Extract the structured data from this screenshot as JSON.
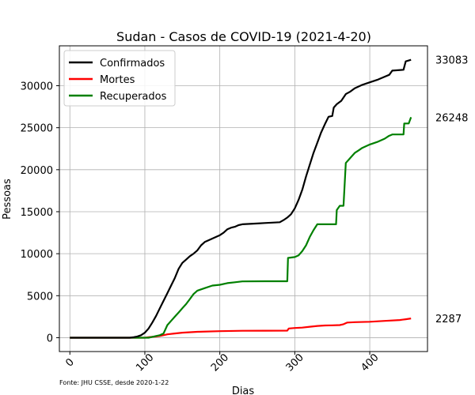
{
  "chart_data": {
    "type": "line",
    "title": "Sudan - Casos de COVID-19 (2021-4-20)",
    "xlabel": "Dias",
    "ylabel": "Pessoas",
    "xlim": [
      -14,
      477
    ],
    "ylim": [
      -1650,
      34750
    ],
    "xticks": [
      0,
      100,
      200,
      300,
      400
    ],
    "yticks": [
      0,
      5000,
      10000,
      15000,
      20000,
      25000,
      30000
    ],
    "grid": true,
    "legend_position": "top-left",
    "source_note": "Fonte: JHU CSSE, desde 2020-1-22",
    "series": [
      {
        "name": "Confirmados",
        "color": "#000000",
        "end_label": "33083",
        "points": [
          [
            0,
            0
          ],
          [
            80,
            0
          ],
          [
            85,
            60
          ],
          [
            90,
            150
          ],
          [
            95,
            300
          ],
          [
            100,
            600
          ],
          [
            105,
            1100
          ],
          [
            110,
            1800
          ],
          [
            115,
            2600
          ],
          [
            120,
            3500
          ],
          [
            125,
            4400
          ],
          [
            130,
            5300
          ],
          [
            135,
            6200
          ],
          [
            140,
            7100
          ],
          [
            145,
            8200
          ],
          [
            150,
            8900
          ],
          [
            155,
            9300
          ],
          [
            160,
            9700
          ],
          [
            165,
            10000
          ],
          [
            170,
            10400
          ],
          [
            175,
            11000
          ],
          [
            180,
            11400
          ],
          [
            185,
            11600
          ],
          [
            190,
            11800
          ],
          [
            195,
            12000
          ],
          [
            200,
            12200
          ],
          [
            205,
            12500
          ],
          [
            210,
            12900
          ],
          [
            215,
            13100
          ],
          [
            220,
            13200
          ],
          [
            225,
            13400
          ],
          [
            230,
            13500
          ],
          [
            240,
            13550
          ],
          [
            250,
            13600
          ],
          [
            260,
            13650
          ],
          [
            270,
            13700
          ],
          [
            280,
            13750
          ],
          [
            285,
            14000
          ],
          [
            290,
            14300
          ],
          [
            295,
            14700
          ],
          [
            300,
            15400
          ],
          [
            305,
            16400
          ],
          [
            310,
            17600
          ],
          [
            315,
            19200
          ],
          [
            320,
            20600
          ],
          [
            325,
            22000
          ],
          [
            330,
            23200
          ],
          [
            335,
            24400
          ],
          [
            340,
            25400
          ],
          [
            345,
            26300
          ],
          [
            350,
            26400
          ],
          [
            352,
            27400
          ],
          [
            356,
            27800
          ],
          [
            362,
            28200
          ],
          [
            368,
            29000
          ],
          [
            374,
            29300
          ],
          [
            380,
            29700
          ],
          [
            390,
            30100
          ],
          [
            400,
            30400
          ],
          [
            410,
            30700
          ],
          [
            418,
            31000
          ],
          [
            426,
            31300
          ],
          [
            430,
            31800
          ],
          [
            445,
            31900
          ],
          [
            448,
            32900
          ],
          [
            455,
            33083
          ]
        ]
      },
      {
        "name": "Mortes",
        "color": "#ff0000",
        "end_label": "2287",
        "points": [
          [
            0,
            0
          ],
          [
            100,
            0
          ],
          [
            105,
            50
          ],
          [
            110,
            100
          ],
          [
            115,
            150
          ],
          [
            120,
            200
          ],
          [
            125,
            300
          ],
          [
            130,
            400
          ],
          [
            140,
            500
          ],
          [
            150,
            600
          ],
          [
            170,
            700
          ],
          [
            200,
            780
          ],
          [
            230,
            820
          ],
          [
            260,
            830
          ],
          [
            290,
            840
          ],
          [
            292,
            1100
          ],
          [
            300,
            1150
          ],
          [
            310,
            1200
          ],
          [
            320,
            1300
          ],
          [
            330,
            1400
          ],
          [
            340,
            1450
          ],
          [
            350,
            1470
          ],
          [
            360,
            1500
          ],
          [
            365,
            1600
          ],
          [
            370,
            1800
          ],
          [
            380,
            1850
          ],
          [
            400,
            1900
          ],
          [
            420,
            2000
          ],
          [
            440,
            2100
          ],
          [
            448,
            2200
          ],
          [
            455,
            2287
          ]
        ]
      },
      {
        "name": "Recuperados",
        "color": "#008000",
        "end_label": "26248",
        "points": [
          [
            0,
            0
          ],
          [
            105,
            0
          ],
          [
            110,
            100
          ],
          [
            115,
            200
          ],
          [
            120,
            300
          ],
          [
            125,
            500
          ],
          [
            130,
            1500
          ],
          [
            135,
            2000
          ],
          [
            140,
            2500
          ],
          [
            145,
            3000
          ],
          [
            150,
            3500
          ],
          [
            155,
            4000
          ],
          [
            160,
            4600
          ],
          [
            165,
            5200
          ],
          [
            170,
            5600
          ],
          [
            180,
            5900
          ],
          [
            190,
            6200
          ],
          [
            200,
            6300
          ],
          [
            210,
            6500
          ],
          [
            220,
            6600
          ],
          [
            230,
            6700
          ],
          [
            260,
            6720
          ],
          [
            290,
            6720
          ],
          [
            291,
            9500
          ],
          [
            300,
            9600
          ],
          [
            305,
            9800
          ],
          [
            310,
            10300
          ],
          [
            315,
            11000
          ],
          [
            320,
            12000
          ],
          [
            325,
            12800
          ],
          [
            330,
            13500
          ],
          [
            355,
            13500
          ],
          [
            356,
            15200
          ],
          [
            360,
            15700
          ],
          [
            365,
            15700
          ],
          [
            368,
            20800
          ],
          [
            375,
            21500
          ],
          [
            380,
            22000
          ],
          [
            385,
            22300
          ],
          [
            390,
            22600
          ],
          [
            400,
            23000
          ],
          [
            410,
            23300
          ],
          [
            420,
            23700
          ],
          [
            425,
            24000
          ],
          [
            430,
            24200
          ],
          [
            445,
            24200
          ],
          [
            446,
            25500
          ],
          [
            452,
            25500
          ],
          [
            455,
            26248
          ]
        ]
      }
    ]
  }
}
